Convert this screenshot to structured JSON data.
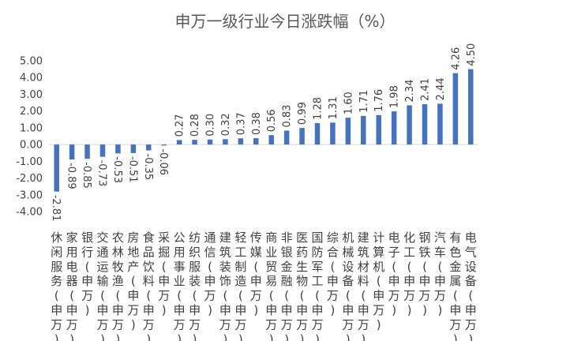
{
  "chart_data": {
    "type": "bar",
    "title": "申万一级行业今日涨跌幅（%）",
    "xlabel": "",
    "ylabel": "",
    "ylim": [
      -4.0,
      5.0
    ],
    "yticks": [
      "5.00",
      "4.00",
      "3.00",
      "2.00",
      "1.00",
      "0.00",
      "-1.00",
      "-2.00",
      "-3.00",
      "-4.00"
    ],
    "bar_color": "#4472C4",
    "categories": [
      "休闲服务(申万)",
      "家用电器(申万)",
      "银行(申万)",
      "交通运输(申万)",
      "农林牧渔(申万)",
      "房地产(申万)",
      "食品饮料(申万)",
      "采掘(申万)",
      "公用事业(申万)",
      "纺织服装(申万)",
      "通信(申万)",
      "建筑装饰(申万)",
      "轻工制造(申万)",
      "传媒(申万)",
      "商业贸易(申万)",
      "非银金融(申万)",
      "医药生物(申万)",
      "国防军工(申万)",
      "综合(申万)",
      "机械设备(申万)",
      "建筑材料(申万)",
      "计算机(申万)",
      "电子(申万)",
      "化工(申万)",
      "钢铁(申万)",
      "汽车(申万)",
      "有色金属(申万)",
      "电气设备(申万)"
    ],
    "values": [
      -2.81,
      -0.89,
      -0.85,
      -0.73,
      -0.53,
      -0.51,
      -0.35,
      -0.06,
      0.27,
      0.28,
      0.3,
      0.32,
      0.37,
      0.38,
      0.56,
      0.83,
      0.99,
      1.28,
      1.31,
      1.6,
      1.71,
      1.76,
      1.98,
      2.34,
      2.41,
      2.44,
      4.26,
      4.5
    ],
    "labels": [
      "-2.81",
      "-0.89",
      "-0.85",
      "-0.73",
      "-0.53",
      "-0.51",
      "-0.35",
      "-0.06",
      "0.27",
      "0.28",
      "0.30",
      "0.32",
      "0.37",
      "0.38",
      "0.56",
      "0.83",
      "0.99",
      "1.28",
      "1.31",
      "1.60",
      "1.71",
      "1.76",
      "1.98",
      "2.34",
      "2.41",
      "2.44",
      "4.26",
      "4.50"
    ]
  }
}
